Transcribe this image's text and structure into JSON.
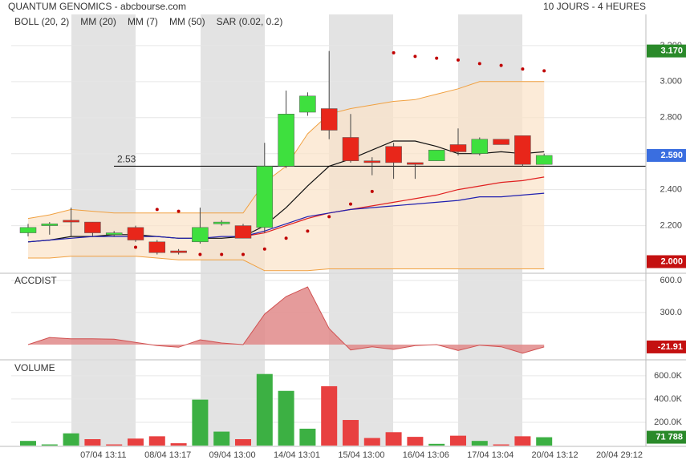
{
  "header": {
    "title": "QUANTUM GENOMICS - abcbourse.com",
    "period": "10 JOURS - 4 HEURES"
  },
  "chart_data": [
    {
      "type": "candlestick",
      "open": [
        2.16,
        2.2,
        2.23,
        2.22,
        2.15,
        2.19,
        2.11,
        2.06,
        2.11,
        2.21,
        2.2,
        2.19,
        2.53,
        2.83,
        2.85,
        2.69,
        2.56,
        2.64,
        2.55,
        2.56,
        2.65,
        2.6,
        2.68,
        2.7,
        2.54
      ],
      "high": [
        2.21,
        2.22,
        2.3,
        2.22,
        2.17,
        2.2,
        2.12,
        2.07,
        2.3,
        2.23,
        2.21,
        2.66,
        2.95,
        2.94,
        3.17,
        2.82,
        2.58,
        2.66,
        2.55,
        2.62,
        2.74,
        2.69,
        2.68,
        2.7,
        2.6
      ],
      "low": [
        2.14,
        2.15,
        2.14,
        2.14,
        2.14,
        2.11,
        2.04,
        2.04,
        2.1,
        2.2,
        2.13,
        2.16,
        2.52,
        2.81,
        2.68,
        2.55,
        2.48,
        2.46,
        2.46,
        2.56,
        2.59,
        2.59,
        2.65,
        2.53,
        2.54
      ],
      "close": [
        2.19,
        2.21,
        2.22,
        2.16,
        2.16,
        2.12,
        2.05,
        2.05,
        2.19,
        2.22,
        2.13,
        2.53,
        2.82,
        2.92,
        2.73,
        2.56,
        2.55,
        2.55,
        2.54,
        2.62,
        2.61,
        2.68,
        2.65,
        2.54,
        2.59
      ],
      "up_color": "#3ee03e",
      "down_color": "#e8261a",
      "bands": {
        "name": "BOLL (20, 2)",
        "color": "#f0a040",
        "fill": "#fbe3c8",
        "upper": [
          2.24,
          2.26,
          2.29,
          2.28,
          2.27,
          2.27,
          2.27,
          2.27,
          2.27,
          2.27,
          2.27,
          2.44,
          2.53,
          2.71,
          2.82,
          2.85,
          2.87,
          2.89,
          2.9,
          2.93,
          2.96,
          3.0,
          3.0,
          3.0,
          3.0
        ],
        "lower": [
          2.02,
          2.02,
          2.03,
          2.03,
          2.03,
          2.03,
          2.02,
          2.01,
          2.01,
          2.01,
          2.01,
          1.95,
          1.95,
          1.95,
          1.96,
          1.96,
          1.96,
          1.96,
          1.96,
          1.96,
          1.96,
          1.96,
          1.96,
          1.96,
          1.96
        ]
      },
      "lines": [
        {
          "name": "MM (20)",
          "color": "#e02020",
          "values": [
            null,
            null,
            null,
            null,
            null,
            null,
            null,
            null,
            null,
            null,
            2.14,
            2.16,
            2.2,
            2.24,
            2.27,
            2.29,
            2.31,
            2.33,
            2.35,
            2.37,
            2.4,
            2.42,
            2.44,
            2.45,
            2.47
          ]
        },
        {
          "name": "MM (7)",
          "color": "#111111",
          "values": [
            2.11,
            2.12,
            2.14,
            2.14,
            2.15,
            2.15,
            2.14,
            2.13,
            2.13,
            2.13,
            2.14,
            2.2,
            2.3,
            2.42,
            2.53,
            2.57,
            2.62,
            2.67,
            2.67,
            2.64,
            2.6,
            2.6,
            2.61,
            2.6,
            2.61
          ]
        },
        {
          "name": "MM (50)",
          "color": "#2020b0",
          "values": [
            2.11,
            2.12,
            2.13,
            2.14,
            2.14,
            2.14,
            2.14,
            2.13,
            2.13,
            2.14,
            2.14,
            2.17,
            2.21,
            2.25,
            2.27,
            2.29,
            2.3,
            2.31,
            2.32,
            2.33,
            2.34,
            2.36,
            2.36,
            2.37,
            2.38
          ]
        }
      ],
      "sar": {
        "name": "SAR (0.02, 0.2)",
        "color": "#c00000",
        "values": [
          null,
          null,
          null,
          null,
          null,
          2.08,
          2.29,
          2.28,
          2.04,
          2.04,
          2.04,
          2.07,
          2.13,
          2.17,
          2.25,
          2.32,
          2.39,
          3.16,
          3.14,
          3.13,
          3.12,
          3.1,
          3.09,
          3.07,
          3.06
        ]
      },
      "reference_line": 2.53,
      "markers": [
        {
          "value": 3.17,
          "label": "3.170",
          "color": "#2a8a2a"
        },
        {
          "value": 2.59,
          "label": "2.590",
          "color": "#3a6ee0"
        },
        {
          "value": 2.0,
          "label": "2.000",
          "color": "#c41010"
        }
      ],
      "ylim": [
        1.94,
        3.373
      ],
      "yticks": [
        {
          "value": 2.2,
          "label": "2.200"
        },
        {
          "value": 2.4,
          "label": "2.400"
        },
        {
          "value": 2.6,
          "label": "2.600"
        },
        {
          "value": 2.8,
          "label": "2.800"
        },
        {
          "value": 3.0,
          "label": "3.000"
        },
        {
          "value": 3.2,
          "label": "3.200"
        }
      ]
    },
    {
      "type": "area",
      "title": "ACCDIST",
      "color": "#d05050",
      "fill": "#e08a8a",
      "values": [
        0,
        67,
        55,
        55,
        50,
        20,
        -10,
        -25,
        45,
        15,
        0,
        285,
        450,
        540,
        150,
        -50,
        -20,
        -45,
        -10,
        0,
        -55,
        -5,
        -20,
        -80,
        -21.91
      ],
      "markers": [
        {
          "value": -21.91,
          "color": "#c41010"
        }
      ],
      "ylim": [
        -135,
        660
      ],
      "yticks": [
        {
          "value": 300,
          "label": "300.0"
        },
        {
          "value": 600,
          "label": "600.0"
        }
      ]
    },
    {
      "type": "bar",
      "title": "VOLUME",
      "values": [
        40000,
        10000,
        105000,
        55000,
        10000,
        60000,
        80000,
        20000,
        395000,
        120000,
        55000,
        615000,
        470000,
        145000,
        510000,
        220000,
        65000,
        115000,
        75000,
        15000,
        85000,
        40000,
        10000,
        80000,
        71788
      ],
      "colors": [
        "#3cb043",
        "#3cb043",
        "#3cb043",
        "#e84040",
        "#e84040",
        "#e84040",
        "#e84040",
        "#e84040",
        "#3cb043",
        "#3cb043",
        "#e84040",
        "#3cb043",
        "#3cb043",
        "#3cb043",
        "#e84040",
        "#e84040",
        "#e84040",
        "#e84040",
        "#e84040",
        "#3cb043",
        "#e84040",
        "#3cb043",
        "#e84040",
        "#e84040",
        "#3cb043"
      ],
      "markers": [
        {
          "value": 71788,
          "label": "71 788",
          "color": "#2a8a2a"
        }
      ],
      "ylim": [
        0,
        730000
      ],
      "yticks": [
        {
          "value": 200000,
          "label": "200.0K"
        },
        {
          "value": 400000,
          "label": "400.0K"
        },
        {
          "value": 600000,
          "label": "600.0K"
        }
      ],
      "x_labels": [
        "07/04 13:11",
        "08/04 13:17",
        "09/04 13:00",
        "14/04 13:01",
        "15/04 13:00",
        "16/04 13:06",
        "17/04 13:04",
        "20/04 13:12",
        "20/04 29:12"
      ]
    }
  ]
}
